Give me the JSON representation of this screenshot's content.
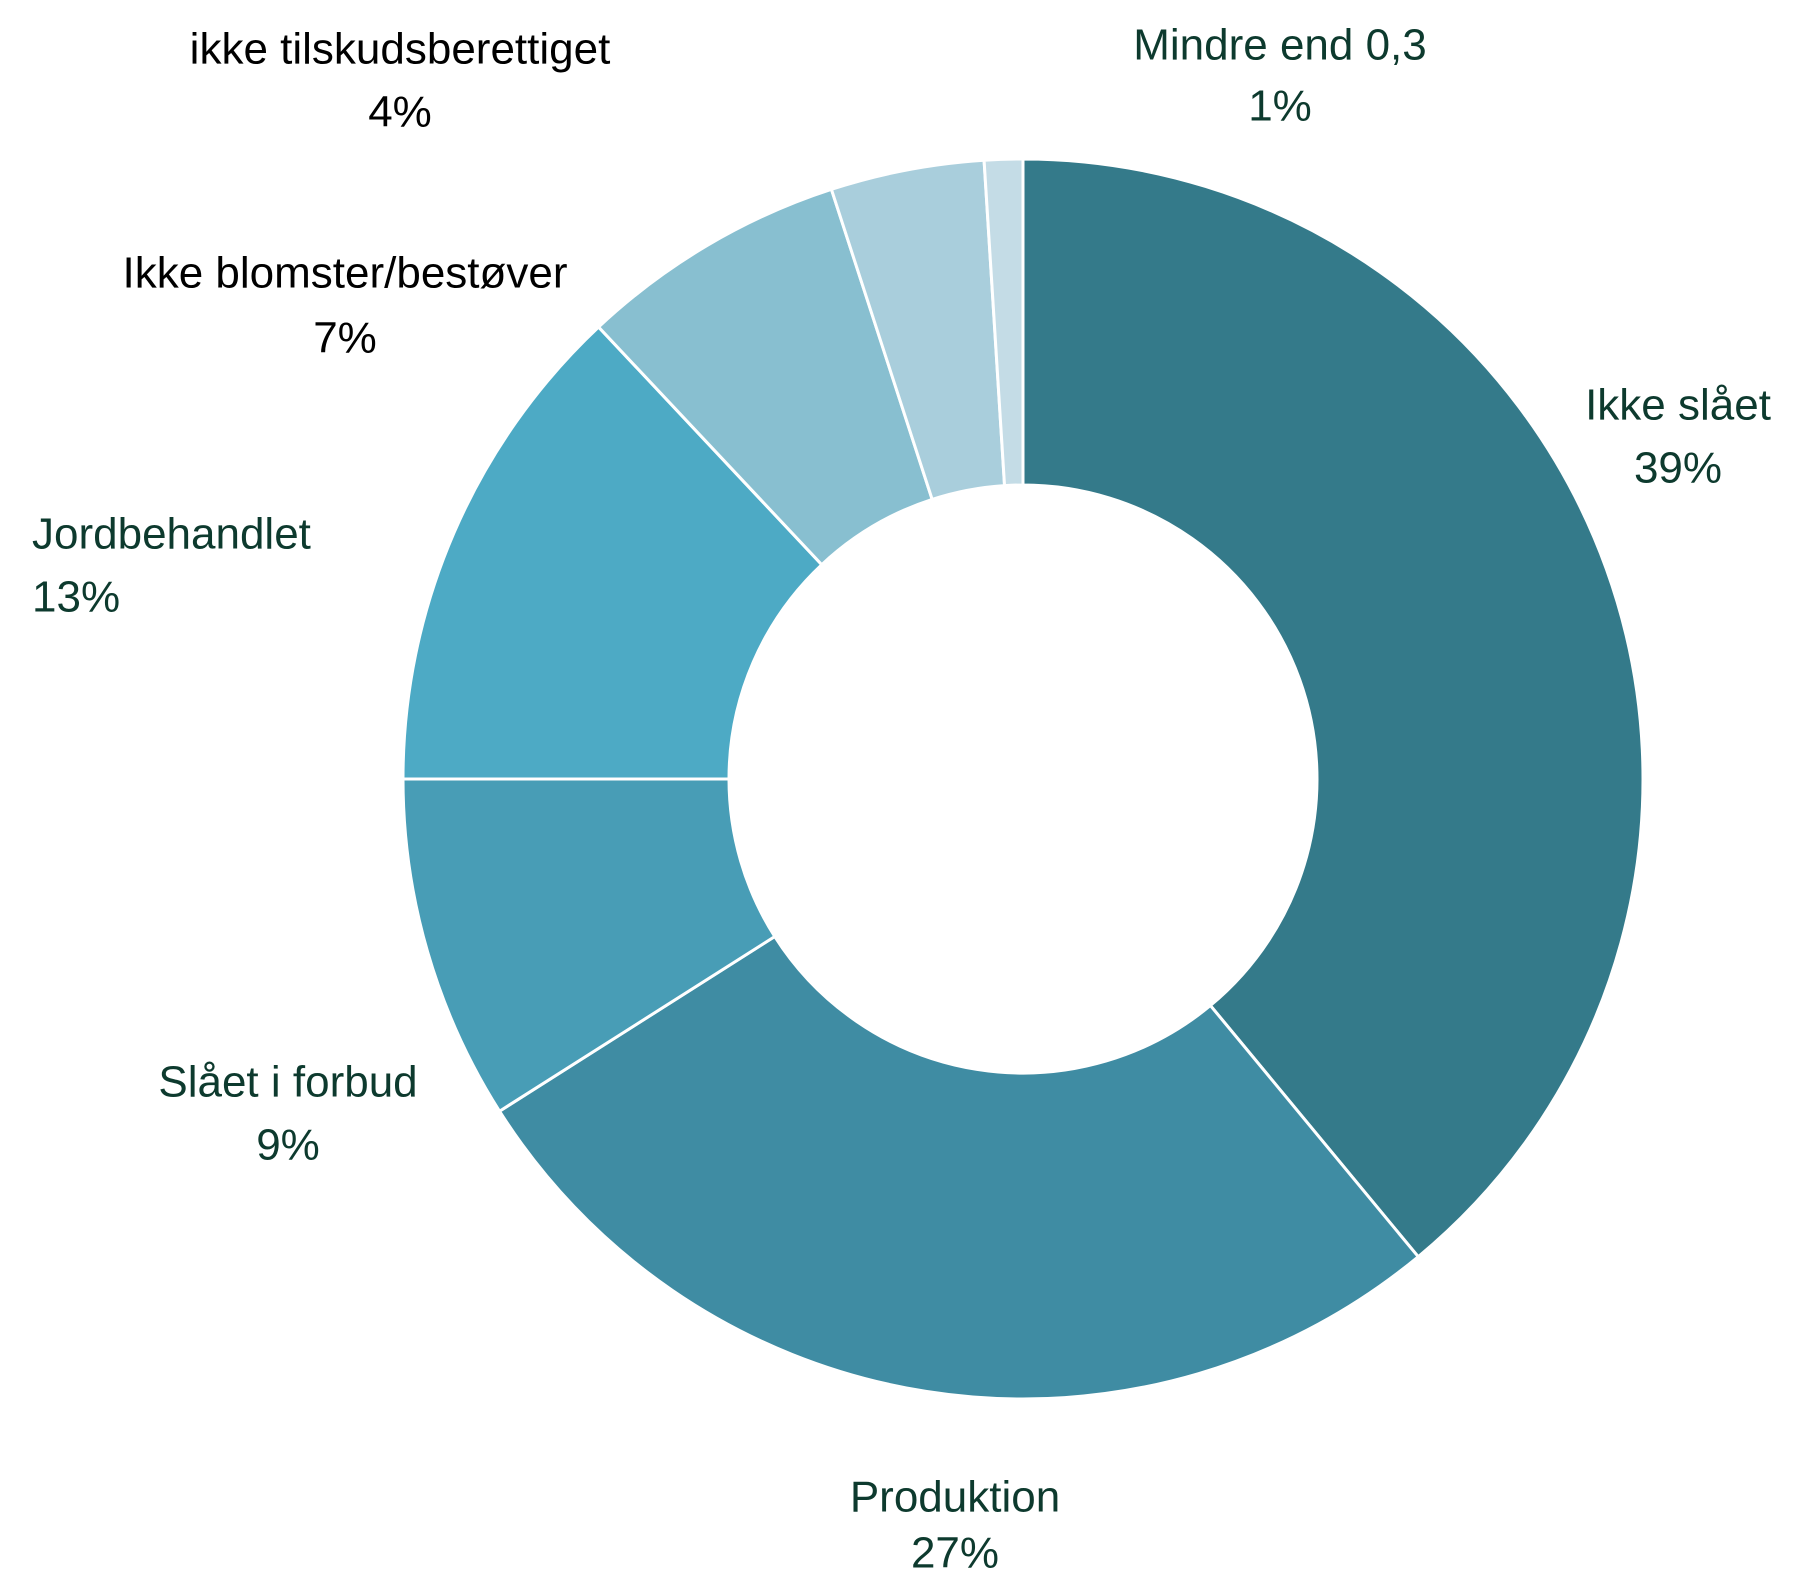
{
  "chart_data": {
    "type": "donut",
    "categories": [
      "Ikke slået",
      "Produktion",
      "Slået i forbud",
      "Jordbehandlet",
      "Ikke blomster/bestøver",
      "ikke tilskudsberettiget",
      "Mindre end 0,3"
    ],
    "values": [
      39,
      27,
      9,
      13,
      7,
      4,
      1
    ],
    "value_labels": [
      "39%",
      "27%",
      "9%",
      "13%",
      "7%",
      "4%",
      "1%"
    ],
    "colors": [
      "#347a8a",
      "#3f8ca3",
      "#489db6",
      "#4daac5",
      "#88bfd0",
      "#a9cedc",
      "#c4dce6"
    ],
    "label_colors": [
      "#0d3a2e",
      "#0d3a2e",
      "#0d3a2e",
      "#0d3a2e",
      "#000000",
      "#000000",
      "#0d3a2e"
    ]
  }
}
